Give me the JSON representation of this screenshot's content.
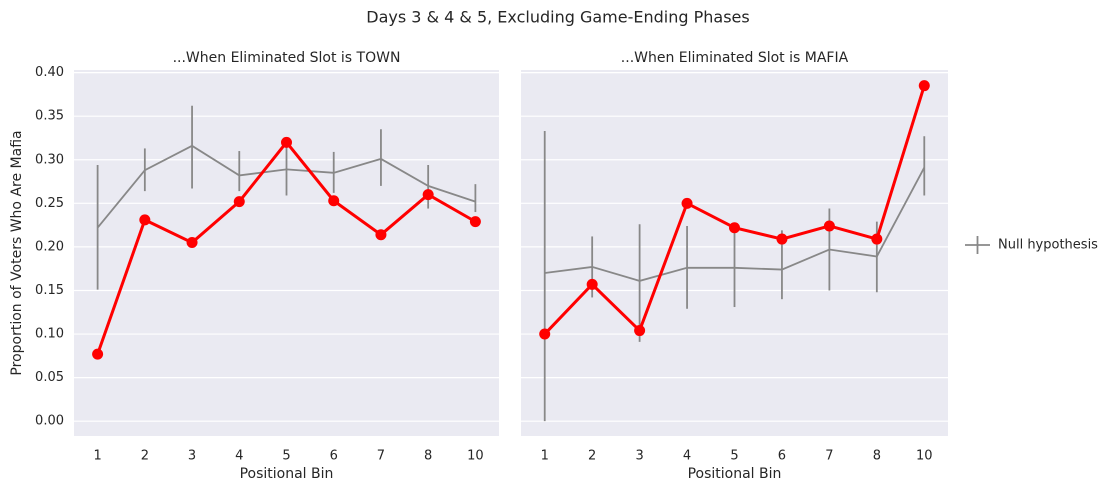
{
  "title": "Days 3 & 4 & 5, Excluding Game-Ending Phases",
  "legend": "right",
  "chart_data": [
    {
      "type": "line",
      "title": "...When Eliminated Slot is TOWN",
      "xlabel": "Positional Bin",
      "ylabel": "Proportion of Voters Who Are Mafia",
      "categories": [
        "1",
        "2",
        "3",
        "4",
        "5",
        "6",
        "7",
        "8",
        "10"
      ],
      "ylim": [
        -0.017,
        0.403
      ],
      "yticks": [
        {
          "value": 0,
          "label": "0.00"
        },
        {
          "value": 0.05,
          "label": "0.05"
        },
        {
          "value": 0.1,
          "label": "0.10"
        },
        {
          "value": 0.15,
          "label": "0.15"
        },
        {
          "value": 0.2,
          "label": "0.20"
        },
        {
          "value": 0.25,
          "label": "0.25"
        },
        {
          "value": 0.3,
          "label": "0.30"
        },
        {
          "value": 0.35,
          "label": "0.35"
        },
        {
          "value": 0.4,
          "label": "0.40"
        }
      ],
      "grid": true,
      "series": [
        {
          "name": "Null hypothesis",
          "color": "#888888",
          "markers": false,
          "values": [
            0.222,
            0.288,
            0.316,
            0.282,
            0.289,
            0.285,
            0.301,
            0.27,
            0.252
          ],
          "ci_low": [
            0.151,
            0.264,
            0.267,
            0.264,
            0.259,
            0.262,
            0.27,
            0.244,
            0.24
          ],
          "ci_high": [
            0.294,
            0.313,
            0.362,
            0.31,
            0.32,
            0.309,
            0.335,
            0.294,
            0.272
          ]
        },
        {
          "color": "#ff0000",
          "markers": true,
          "values": [
            0.077,
            0.231,
            0.205,
            0.252,
            0.32,
            0.253,
            0.214,
            0.26,
            0.229
          ]
        }
      ]
    },
    {
      "type": "line",
      "title": "...When Eliminated Slot is MAFIA",
      "xlabel": "Positional Bin",
      "categories": [
        "1",
        "2",
        "3",
        "4",
        "5",
        "6",
        "7",
        "8",
        "10"
      ],
      "ylim": [
        -0.017,
        0.403
      ],
      "yticks": [
        0,
        0.05,
        0.1,
        0.15,
        0.2,
        0.25,
        0.3,
        0.35,
        0.4
      ],
      "grid": true,
      "series": [
        {
          "name": "Null hypothesis",
          "color": "#888888",
          "markers": false,
          "values": [
            0.17,
            0.177,
            0.161,
            0.176,
            0.176,
            0.174,
            0.197,
            0.189,
            0.291
          ],
          "ci_low": [
            0,
            0.142,
            0.091,
            0.129,
            0.131,
            0.14,
            0.15,
            0.148,
            0.259
          ],
          "ci_high": [
            0.333,
            0.212,
            0.226,
            0.224,
            0.223,
            0.219,
            0.244,
            0.229,
            0.327
          ]
        },
        {
          "color": "#ff0000",
          "markers": true,
          "values": [
            0.1,
            0.157,
            0.104,
            0.25,
            0.222,
            0.209,
            0.224,
            0.209,
            0.385
          ]
        }
      ]
    }
  ]
}
